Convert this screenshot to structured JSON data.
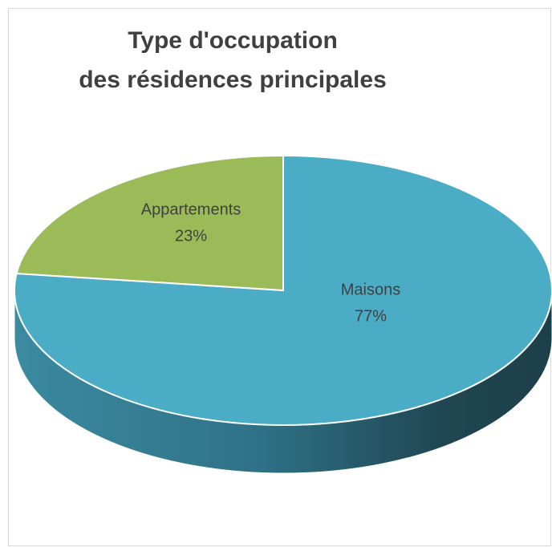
{
  "chart_data": {
    "type": "pie",
    "title": [
      "Type d'occupation",
      "des résidences principales"
    ],
    "categories": [
      "Maisons",
      "Appartements"
    ],
    "values": [
      77,
      23
    ],
    "value_labels": [
      "77%",
      "23%"
    ],
    "colors": [
      "#4bacc6",
      "#9bbb59"
    ]
  }
}
